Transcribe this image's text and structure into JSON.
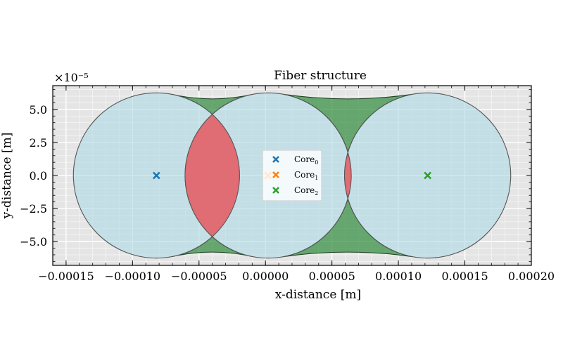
{
  "chart_data": {
    "type": "scatter",
    "title": "Fiber structure",
    "xlabel": "x-distance [m]",
    "ylabel": "y-distance [m]",
    "y_offset_text": "×10⁻⁵",
    "xlim": [
      -0.00016,
      0.0002
    ],
    "ylim": [
      -6.8e-05,
      6.8e-05
    ],
    "x_ticks": [
      -0.00015,
      -0.0001,
      -5e-05,
      0,
      5e-05,
      0.0001,
      0.00015,
      0.0002
    ],
    "x_tick_labels": [
      "−0.00015",
      "−0.00010",
      "−0.00005",
      "0.00000",
      "0.00005",
      "0.00010",
      "0.00015",
      "0.00020"
    ],
    "y_ticks": [
      5e-05,
      2.5e-05,
      0,
      -2.5e-05,
      -5e-05
    ],
    "y_tick_labels": [
      "5.0",
      "2.5",
      "0.0",
      "−2.5",
      "−5.0"
    ],
    "grid": true,
    "legend_position": "center",
    "colors": {
      "cladding": "#add8e6",
      "overlap": "#e8585f",
      "gap": "#2e8b3a",
      "plot_bg": "#e5e5e5",
      "core0": "#1f77b4",
      "core1": "#ff7f0e",
      "core2": "#2ca02c"
    },
    "core_radius": 6.25e-05,
    "series": [
      {
        "name": "Core",
        "subscript": "0",
        "color": "#1f77b4",
        "marker": "x",
        "x": [
          -8.2e-05
        ],
        "y": [
          0
        ]
      },
      {
        "name": "Core",
        "subscript": "1",
        "color": "#ff7f0e",
        "marker": "x",
        "x": [
          2e-06
        ],
        "y": [
          0
        ]
      },
      {
        "name": "Core",
        "subscript": "2",
        "color": "#2ca02c",
        "marker": "x",
        "x": [
          0.000122
        ],
        "y": [
          0
        ]
      }
    ]
  }
}
